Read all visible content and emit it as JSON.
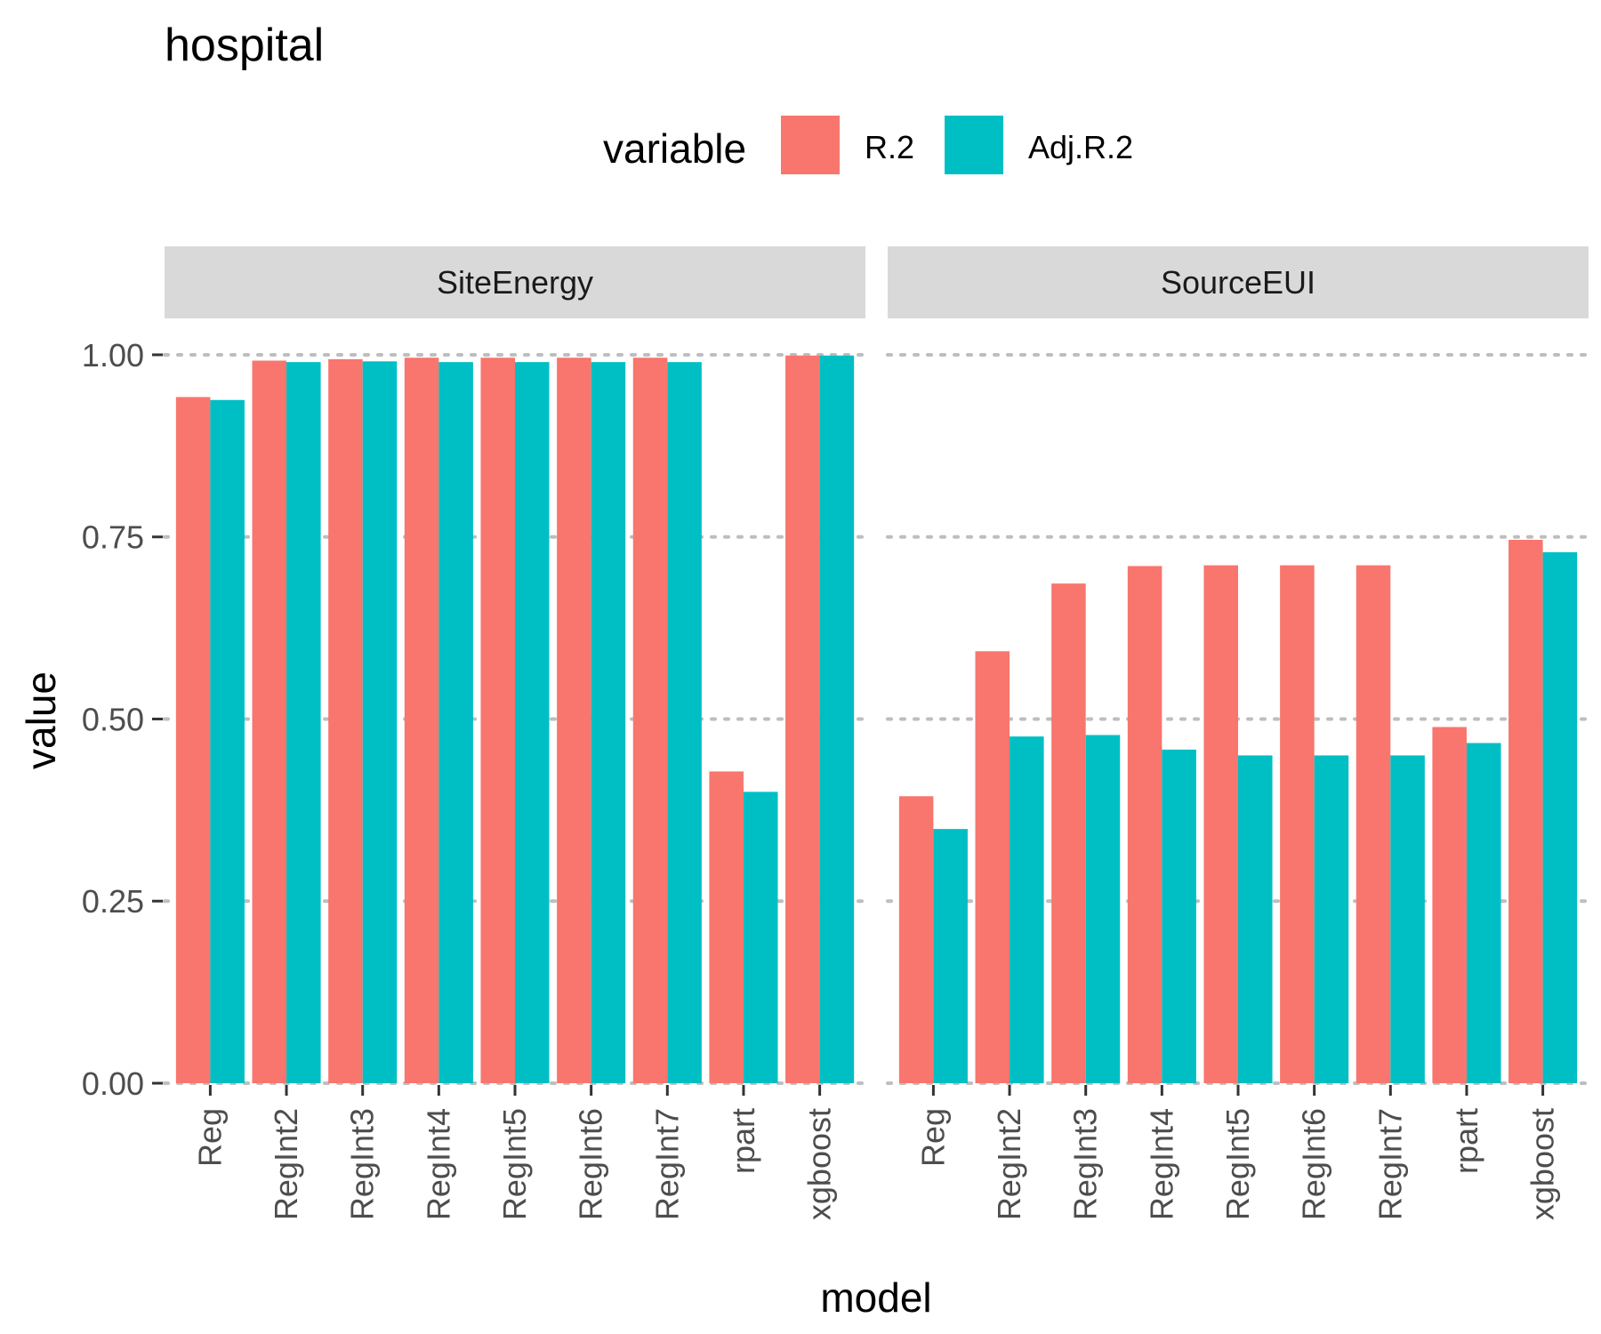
{
  "colors": {
    "r2": "#F8766D",
    "adj_r2": "#00BFC4",
    "strip": "#D9D9D9",
    "grid": "#BEBEBE",
    "axis_text": "#4D4D4D",
    "text": "#000000"
  },
  "chart_data": {
    "type": "bar",
    "title": "hospital",
    "xlabel": "model",
    "ylabel": "value",
    "ylim": [
      0,
      1.05
    ],
    "yticks": [
      "0.00",
      "0.25",
      "0.50",
      "0.75",
      "1.00"
    ],
    "ytick_values": [
      0,
      0.25,
      0.5,
      0.75,
      1.0
    ],
    "grid": "dotted-major",
    "legend": {
      "title": "variable",
      "position": "top",
      "entries": [
        "R.2",
        "Adj.R.2"
      ]
    },
    "categories": [
      "Reg",
      "RegInt2",
      "RegInt3",
      "RegInt4",
      "RegInt5",
      "RegInt6",
      "RegInt7",
      "rpart",
      "xgboost"
    ],
    "facets": [
      {
        "label": "SiteEnergy",
        "series": [
          {
            "name": "R.2",
            "values": [
              0.942,
              0.992,
              0.994,
              0.996,
              0.996,
              0.996,
              0.996,
              0.428,
              0.999
            ]
          },
          {
            "name": "Adj.R.2",
            "values": [
              0.938,
              0.99,
              0.991,
              0.99,
              0.99,
              0.99,
              0.99,
              0.4,
              0.999
            ]
          }
        ]
      },
      {
        "label": "SourceEUI",
        "series": [
          {
            "name": "R.2",
            "values": [
              0.394,
              0.593,
              0.686,
              0.71,
              0.711,
              0.711,
              0.711,
              0.489,
              0.746
            ]
          },
          {
            "name": "Adj.R.2",
            "values": [
              0.349,
              0.476,
              0.478,
              0.458,
              0.45,
              0.45,
              0.45,
              0.467,
              0.729
            ]
          }
        ]
      }
    ]
  }
}
